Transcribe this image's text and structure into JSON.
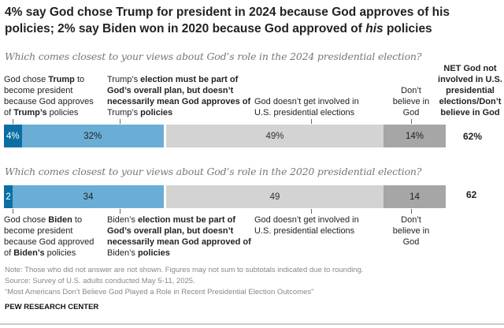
{
  "title": "4% say God chose Trump for president in 2024 because God approves of his policies; 2% say Biden won in 2020 because God approved of his policies",
  "title_parts": [
    "4% say God chose Trump for president in 2024 because God approves of his policies; 2% say Biden won in 2020 because God approved of ",
    "his",
    " policies"
  ],
  "chart_data": {
    "type": "bar",
    "orientation": "horizontal-stacked",
    "series_colors": [
      "#0b6fa4",
      "#6aaed6",
      "#d3d3d3",
      "#a6a6a6"
    ],
    "rows": [
      {
        "question": "Which comes closest to your views about God’s role in the 2024 presidential election?",
        "values": [
          4,
          32,
          49,
          14
        ],
        "labels": [
          "4%",
          "32%",
          "49%",
          "14%"
        ],
        "net": "62%",
        "categories": [
          [
            "God chose ",
            "Trump",
            " to become president because God approves of ",
            "Trump’s",
            " policies"
          ],
          [
            "Trump’s",
            " election must be part of God’s overall plan, but doesn’t necessarily mean God approves of ",
            "Trump’s",
            " policies"
          ],
          [
            "God doesn’t get involved in U.S. presidential elections"
          ],
          [
            "Don’t believe in God"
          ]
        ]
      },
      {
        "question": "Which comes closest to your views about God’s role in the 2020 presidential election?",
        "values": [
          2,
          34,
          49,
          14
        ],
        "labels": [
          "2",
          "34",
          "49",
          "14"
        ],
        "net": "62",
        "categories": [
          [
            "God chose ",
            "Biden",
            " to become president because God approved of ",
            "Biden’s",
            " policies"
          ],
          [
            "Biden’s",
            " election must be part of God’s overall plan, but doesn’t necessarily mean God approved of ",
            "Biden’s",
            " policies"
          ],
          [
            "God doesn’t get involved in U.S. presidential elections"
          ],
          [
            "Don’t believe in God"
          ]
        ]
      }
    ],
    "net_header": "NET God not involved in U.S. presidential elections/Don’t believe in God"
  },
  "footer": {
    "note": "Note: Those who did not answer are not shown. Figures may not sum to subtotals indicated due to rounding.",
    "source": "Source: Survey of U.S. adults conducted May 5-11, 2025.",
    "report": "“Most Americans Don’t Believe God Played a Role in Recent Presidential Election Outcomes”",
    "brand": "PEW RESEARCH CENTER"
  }
}
